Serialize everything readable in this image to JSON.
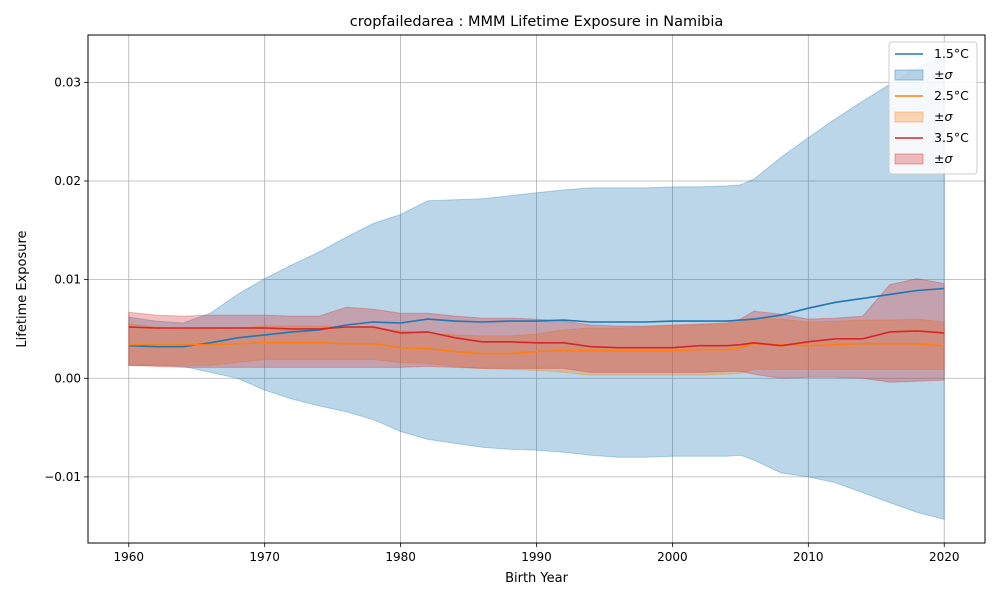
{
  "chart_data": {
    "type": "line",
    "title": "cropfailedarea : MMM Lifetime Exposure in Namibia",
    "xlabel": "Birth Year",
    "ylabel": "Lifetime Exposure",
    "xlim": [
      1957,
      2023
    ],
    "ylim": [
      -0.0167,
      0.0348
    ],
    "xticks": [
      1960,
      1970,
      1980,
      1990,
      2000,
      2010,
      2020
    ],
    "xtick_labels": [
      "1960",
      "1970",
      "1980",
      "1990",
      "2000",
      "2010",
      "2020"
    ],
    "yticks": [
      -0.01,
      0.0,
      0.01,
      0.02,
      0.03
    ],
    "ytick_labels": [
      "−0.01",
      "0.00",
      "0.01",
      "0.02",
      "0.03"
    ],
    "grid": true,
    "legend_position": "top-right",
    "x": [
      1960,
      1962,
      1964,
      1966,
      1968,
      1970,
      1972,
      1974,
      1976,
      1978,
      1980,
      1982,
      1984,
      1986,
      1988,
      1990,
      1992,
      1994,
      1996,
      1998,
      2000,
      2002,
      2004,
      2005,
      2006,
      2008,
      2010,
      2012,
      2014,
      2016,
      2018,
      2020
    ],
    "series": [
      {
        "name": "1.5°C",
        "band_label": "±σ",
        "color": "#1f77b4",
        "band_color": "#1f77b4",
        "values": [
          0.0033,
          0.0032,
          0.0032,
          0.0036,
          0.0041,
          0.0044,
          0.0047,
          0.0049,
          0.0054,
          0.0057,
          0.0056,
          0.006,
          0.0058,
          0.0057,
          0.0058,
          0.0058,
          0.0059,
          0.0057,
          0.0057,
          0.0057,
          0.0058,
          0.0058,
          0.0058,
          0.0059,
          0.006,
          0.0064,
          0.0071,
          0.0077,
          0.0081,
          0.0085,
          0.0089,
          0.0091
        ],
        "upper": [
          0.0062,
          0.0058,
          0.0056,
          0.0066,
          0.0085,
          0.0101,
          0.0115,
          0.0128,
          0.0143,
          0.0157,
          0.0166,
          0.018,
          0.0181,
          0.0182,
          0.0185,
          0.0188,
          0.0191,
          0.0193,
          0.0193,
          0.0193,
          0.0194,
          0.0194,
          0.0195,
          0.0196,
          0.0202,
          0.0224,
          0.0244,
          0.0263,
          0.0281,
          0.0298,
          0.0315,
          0.0326
        ],
        "lower": [
          0.0013,
          0.0013,
          0.0012,
          0.0006,
          0.0,
          -0.0012,
          -0.0021,
          -0.0028,
          -0.0034,
          -0.0042,
          -0.0054,
          -0.0062,
          -0.0066,
          -0.007,
          -0.0072,
          -0.0073,
          -0.0075,
          -0.0078,
          -0.008,
          -0.008,
          -0.0079,
          -0.0079,
          -0.0079,
          -0.0078,
          -0.0083,
          -0.0096,
          -0.01,
          -0.0106,
          -0.0116,
          -0.0126,
          -0.0136,
          -0.0143
        ]
      },
      {
        "name": "2.5°C",
        "band_label": "±σ",
        "color": "#ff7f0e",
        "band_color": "#ff7f0e",
        "values": [
          0.0034,
          0.0034,
          0.0034,
          0.0034,
          0.0035,
          0.0036,
          0.0036,
          0.0036,
          0.0035,
          0.0035,
          0.0031,
          0.003,
          0.0027,
          0.0025,
          0.0025,
          0.0027,
          0.0028,
          0.0028,
          0.0028,
          0.0028,
          0.0028,
          0.0029,
          0.0029,
          0.0031,
          0.0035,
          0.0034,
          0.0033,
          0.0034,
          0.0035,
          0.0035,
          0.0035,
          0.0033
        ],
        "upper": [
          0.0055,
          0.0052,
          0.005,
          0.005,
          0.0051,
          0.0053,
          0.0053,
          0.0053,
          0.0052,
          0.0052,
          0.0048,
          0.0046,
          0.0044,
          0.0043,
          0.0043,
          0.0045,
          0.0049,
          0.0051,
          0.0051,
          0.0052,
          0.0053,
          0.0054,
          0.0055,
          0.0057,
          0.0061,
          0.006,
          0.0057,
          0.0058,
          0.0059,
          0.0059,
          0.006,
          0.0057
        ],
        "lower": [
          0.0013,
          0.0013,
          0.0013,
          0.0013,
          0.0016,
          0.0019,
          0.0019,
          0.0019,
          0.0019,
          0.0019,
          0.0016,
          0.0015,
          0.0012,
          0.001,
          0.0009,
          0.0008,
          0.0006,
          0.0003,
          0.0003,
          0.0003,
          0.0003,
          0.0003,
          0.0004,
          0.0005,
          0.0009,
          0.0009,
          0.0009,
          0.0009,
          0.0009,
          0.0009,
          0.0009,
          0.0009
        ]
      },
      {
        "name": "3.5°C",
        "band_label": "±σ",
        "color": "#d62728",
        "band_color": "#d62728",
        "values": [
          0.0052,
          0.0051,
          0.0051,
          0.0051,
          0.0051,
          0.0051,
          0.005,
          0.005,
          0.0052,
          0.0052,
          0.0046,
          0.0047,
          0.0041,
          0.0037,
          0.0037,
          0.0036,
          0.0036,
          0.0032,
          0.0031,
          0.0031,
          0.0031,
          0.0033,
          0.0033,
          0.0034,
          0.0036,
          0.0033,
          0.0037,
          0.004,
          0.004,
          0.0047,
          0.0048,
          0.0046
        ],
        "upper": [
          0.0067,
          0.0064,
          0.0063,
          0.0064,
          0.0064,
          0.0064,
          0.0063,
          0.0063,
          0.0072,
          0.007,
          0.0066,
          0.0066,
          0.0063,
          0.0061,
          0.0061,
          0.006,
          0.0058,
          0.0054,
          0.0053,
          0.0053,
          0.0054,
          0.0055,
          0.0056,
          0.006,
          0.0068,
          0.0065,
          0.006,
          0.0061,
          0.0063,
          0.0095,
          0.0101,
          0.0096
        ],
        "lower": [
          0.0013,
          0.0012,
          0.0011,
          0.0011,
          0.0011,
          0.0011,
          0.0011,
          0.0011,
          0.0011,
          0.0011,
          0.0011,
          0.0012,
          0.0011,
          0.001,
          0.001,
          0.001,
          0.001,
          0.0006,
          0.0006,
          0.0006,
          0.0006,
          0.0006,
          0.0007,
          0.0007,
          0.0004,
          0.0,
          0.0001,
          0.0001,
          0.0,
          -0.0004,
          -0.0003,
          -0.0002
        ]
      }
    ]
  }
}
